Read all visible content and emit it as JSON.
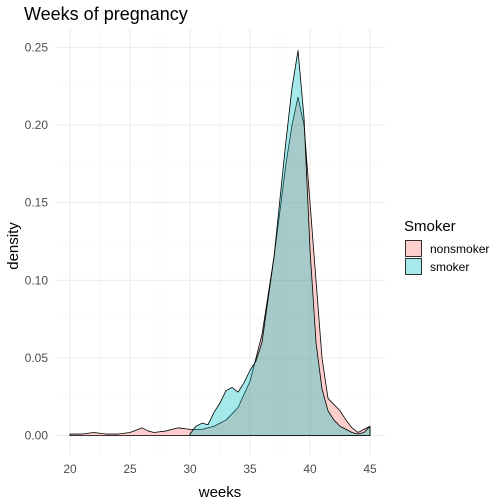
{
  "chart_data": {
    "type": "area",
    "title": "Weeks of pregnancy",
    "xlabel": "weeks",
    "ylabel": "density",
    "xlim": [
      20,
      45
    ],
    "ylim": [
      0,
      0.25
    ],
    "x_ticks": [
      "20",
      "25",
      "30",
      "35",
      "40",
      "45"
    ],
    "y_ticks": [
      "0.00",
      "0.05",
      "0.10",
      "0.15",
      "0.20",
      "0.25"
    ],
    "grid": true,
    "legend": {
      "title": "Smoker",
      "position": "right"
    },
    "series": [
      {
        "name": "nonsmoker",
        "color": "#F8766D",
        "x": [
          20,
          21,
          22,
          23,
          24,
          25,
          26,
          26.5,
          27,
          28,
          29,
          30,
          31,
          32,
          33,
          34,
          35,
          36,
          37,
          38,
          38.5,
          39,
          39.5,
          40,
          40.5,
          41,
          41.5,
          42,
          42.5,
          43,
          43.5,
          44,
          44.5,
          45
        ],
        "y": [
          0.001,
          0.001,
          0.002,
          0.001,
          0.001,
          0.002,
          0.005,
          0.003,
          0.002,
          0.003,
          0.005,
          0.004,
          0.004,
          0.006,
          0.01,
          0.018,
          0.035,
          0.065,
          0.115,
          0.175,
          0.2,
          0.218,
          0.2,
          0.15,
          0.1,
          0.05,
          0.024,
          0.02,
          0.016,
          0.01,
          0.005,
          0.002,
          0.004,
          0.006
        ]
      },
      {
        "name": "smoker",
        "color": "#00BFC4",
        "x": [
          30,
          30.5,
          31,
          31.5,
          32,
          32.5,
          33,
          33.5,
          34,
          34.5,
          35,
          35.5,
          36,
          37,
          38,
          38.5,
          39,
          39.5,
          40,
          40.5,
          41,
          41.5,
          42,
          42.5,
          43,
          43.5,
          44,
          44.5,
          45
        ],
        "y": [
          0.001,
          0.006,
          0.008,
          0.007,
          0.015,
          0.021,
          0.029,
          0.031,
          0.028,
          0.034,
          0.042,
          0.048,
          0.06,
          0.115,
          0.19,
          0.224,
          0.248,
          0.205,
          0.12,
          0.06,
          0.03,
          0.016,
          0.01,
          0.006,
          0.004,
          0.002,
          0.001,
          0.002,
          0.006
        ]
      }
    ]
  }
}
